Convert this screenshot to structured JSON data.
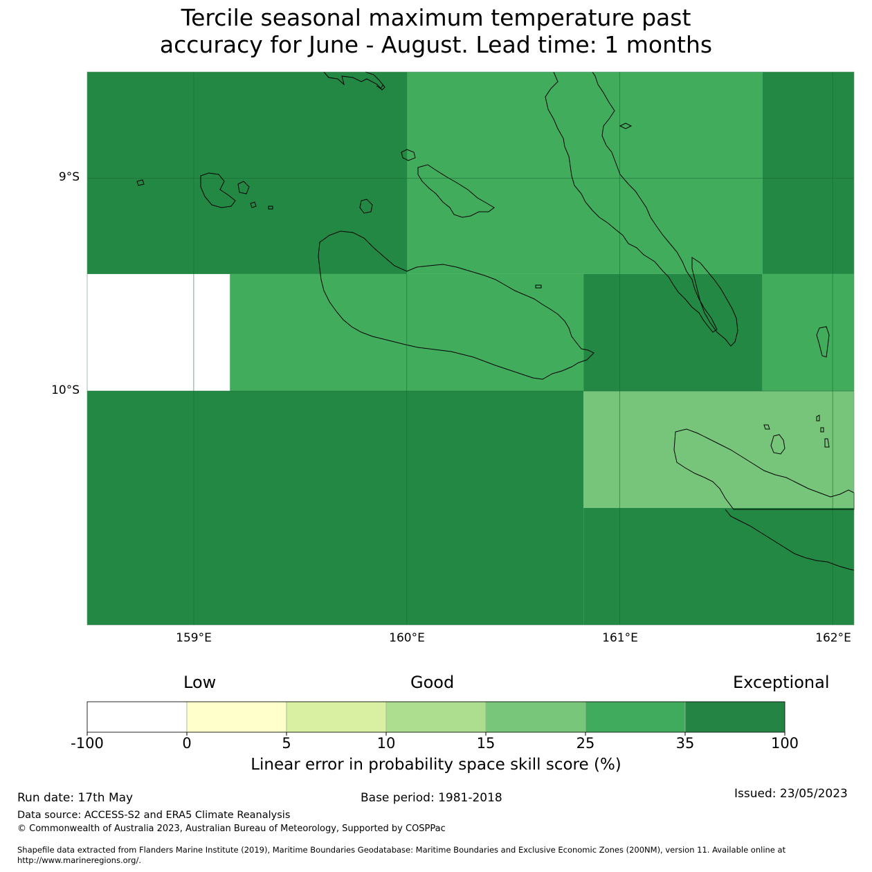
{
  "title": {
    "line1": "Tercile seasonal maximum temperature past",
    "line2": "accuracy for June - August. Lead time: 1 months"
  },
  "map": {
    "lat_labels": [
      "9°S",
      "10°S"
    ],
    "lon_labels": [
      "159°E",
      "160°E",
      "161°E",
      "162°E"
    ],
    "colors": {
      "exceptional": "#238843",
      "band_25_35": "#42ac5d",
      "band_15_25": "#77c57b",
      "coastline": "#000000",
      "gridline": "#1a6b35"
    },
    "skill_cells": [
      {
        "lat_range": [
          "8.5°S",
          "9.45°S"
        ],
        "lon_range": [
          "158.5°E",
          "160.0°E"
        ],
        "category": "35 to 100"
      },
      {
        "lat_range": [
          "8.5°S",
          "9.45°S"
        ],
        "lon_range": [
          "160.0°E",
          "161.67°E"
        ],
        "category": "25 to 35"
      },
      {
        "lat_range": [
          "8.5°S",
          "9.45°S"
        ],
        "lon_range": [
          "161.67°E",
          "162.1°E"
        ],
        "category": "35 to 100"
      },
      {
        "lat_range": [
          "9.45°S",
          "10.0°S"
        ],
        "lon_range": [
          "159.17°E",
          "160.83°E"
        ],
        "category": "25 to 35"
      },
      {
        "lat_range": [
          "9.45°S",
          "10.0°S"
        ],
        "lon_range": [
          "160.83°E",
          "161.67°E"
        ],
        "category": "35 to 100"
      },
      {
        "lat_range": [
          "9.45°S",
          "10.0°S"
        ],
        "lon_range": [
          "161.67°E",
          "162.1°E"
        ],
        "category": "25 to 35"
      },
      {
        "lat_range": [
          "10.0°S",
          "10.55°S"
        ],
        "lon_range": [
          "160.83°E",
          "162.1°E"
        ],
        "category": "15 to 25"
      },
      {
        "lat_range": [
          "10.0°S",
          "11.1°S"
        ],
        "lon_range": [
          "158.5°E",
          "160.83°E"
        ],
        "category": "35 to 100"
      },
      {
        "lat_range": [
          "10.55°S",
          "11.1°S"
        ],
        "lon_range": [
          "160.83°E",
          "162.1°E"
        ],
        "category": "35 to 100"
      }
    ]
  },
  "colorbar": {
    "categories": [
      "Low",
      "Good",
      "Exceptional"
    ],
    "ticks": [
      "-100",
      "0",
      "5",
      "10",
      "15",
      "25",
      "35",
      "100"
    ],
    "colors": [
      "#ffffff",
      "#ffffcc",
      "#d9f0a3",
      "#addd8e",
      "#78c679",
      "#41ab5d",
      "#238443"
    ],
    "label": "Linear error in probability space skill score (%)"
  },
  "footer": {
    "run_date": "Run date: 17th May",
    "base_period": "Base period: 1981-2018",
    "issued": "Issued: 23/05/2023",
    "data_source": "Data source: ACCESS-S2 and ERA5 Climate Reanalysis",
    "copyright": "© Commonwealth of Australia 2023, Australian Bureau of Meteorology, Supported by COSPPac",
    "shapefile_line1": "Shapefile data extracted from Flanders Marine Institute (2019), Maritime Boundaries Geodatabase: Maritime Boundaries and Exclusive Economic Zones (200NM), version 11. Available online at",
    "shapefile_line2": "http://www.marineregions.org/."
  }
}
